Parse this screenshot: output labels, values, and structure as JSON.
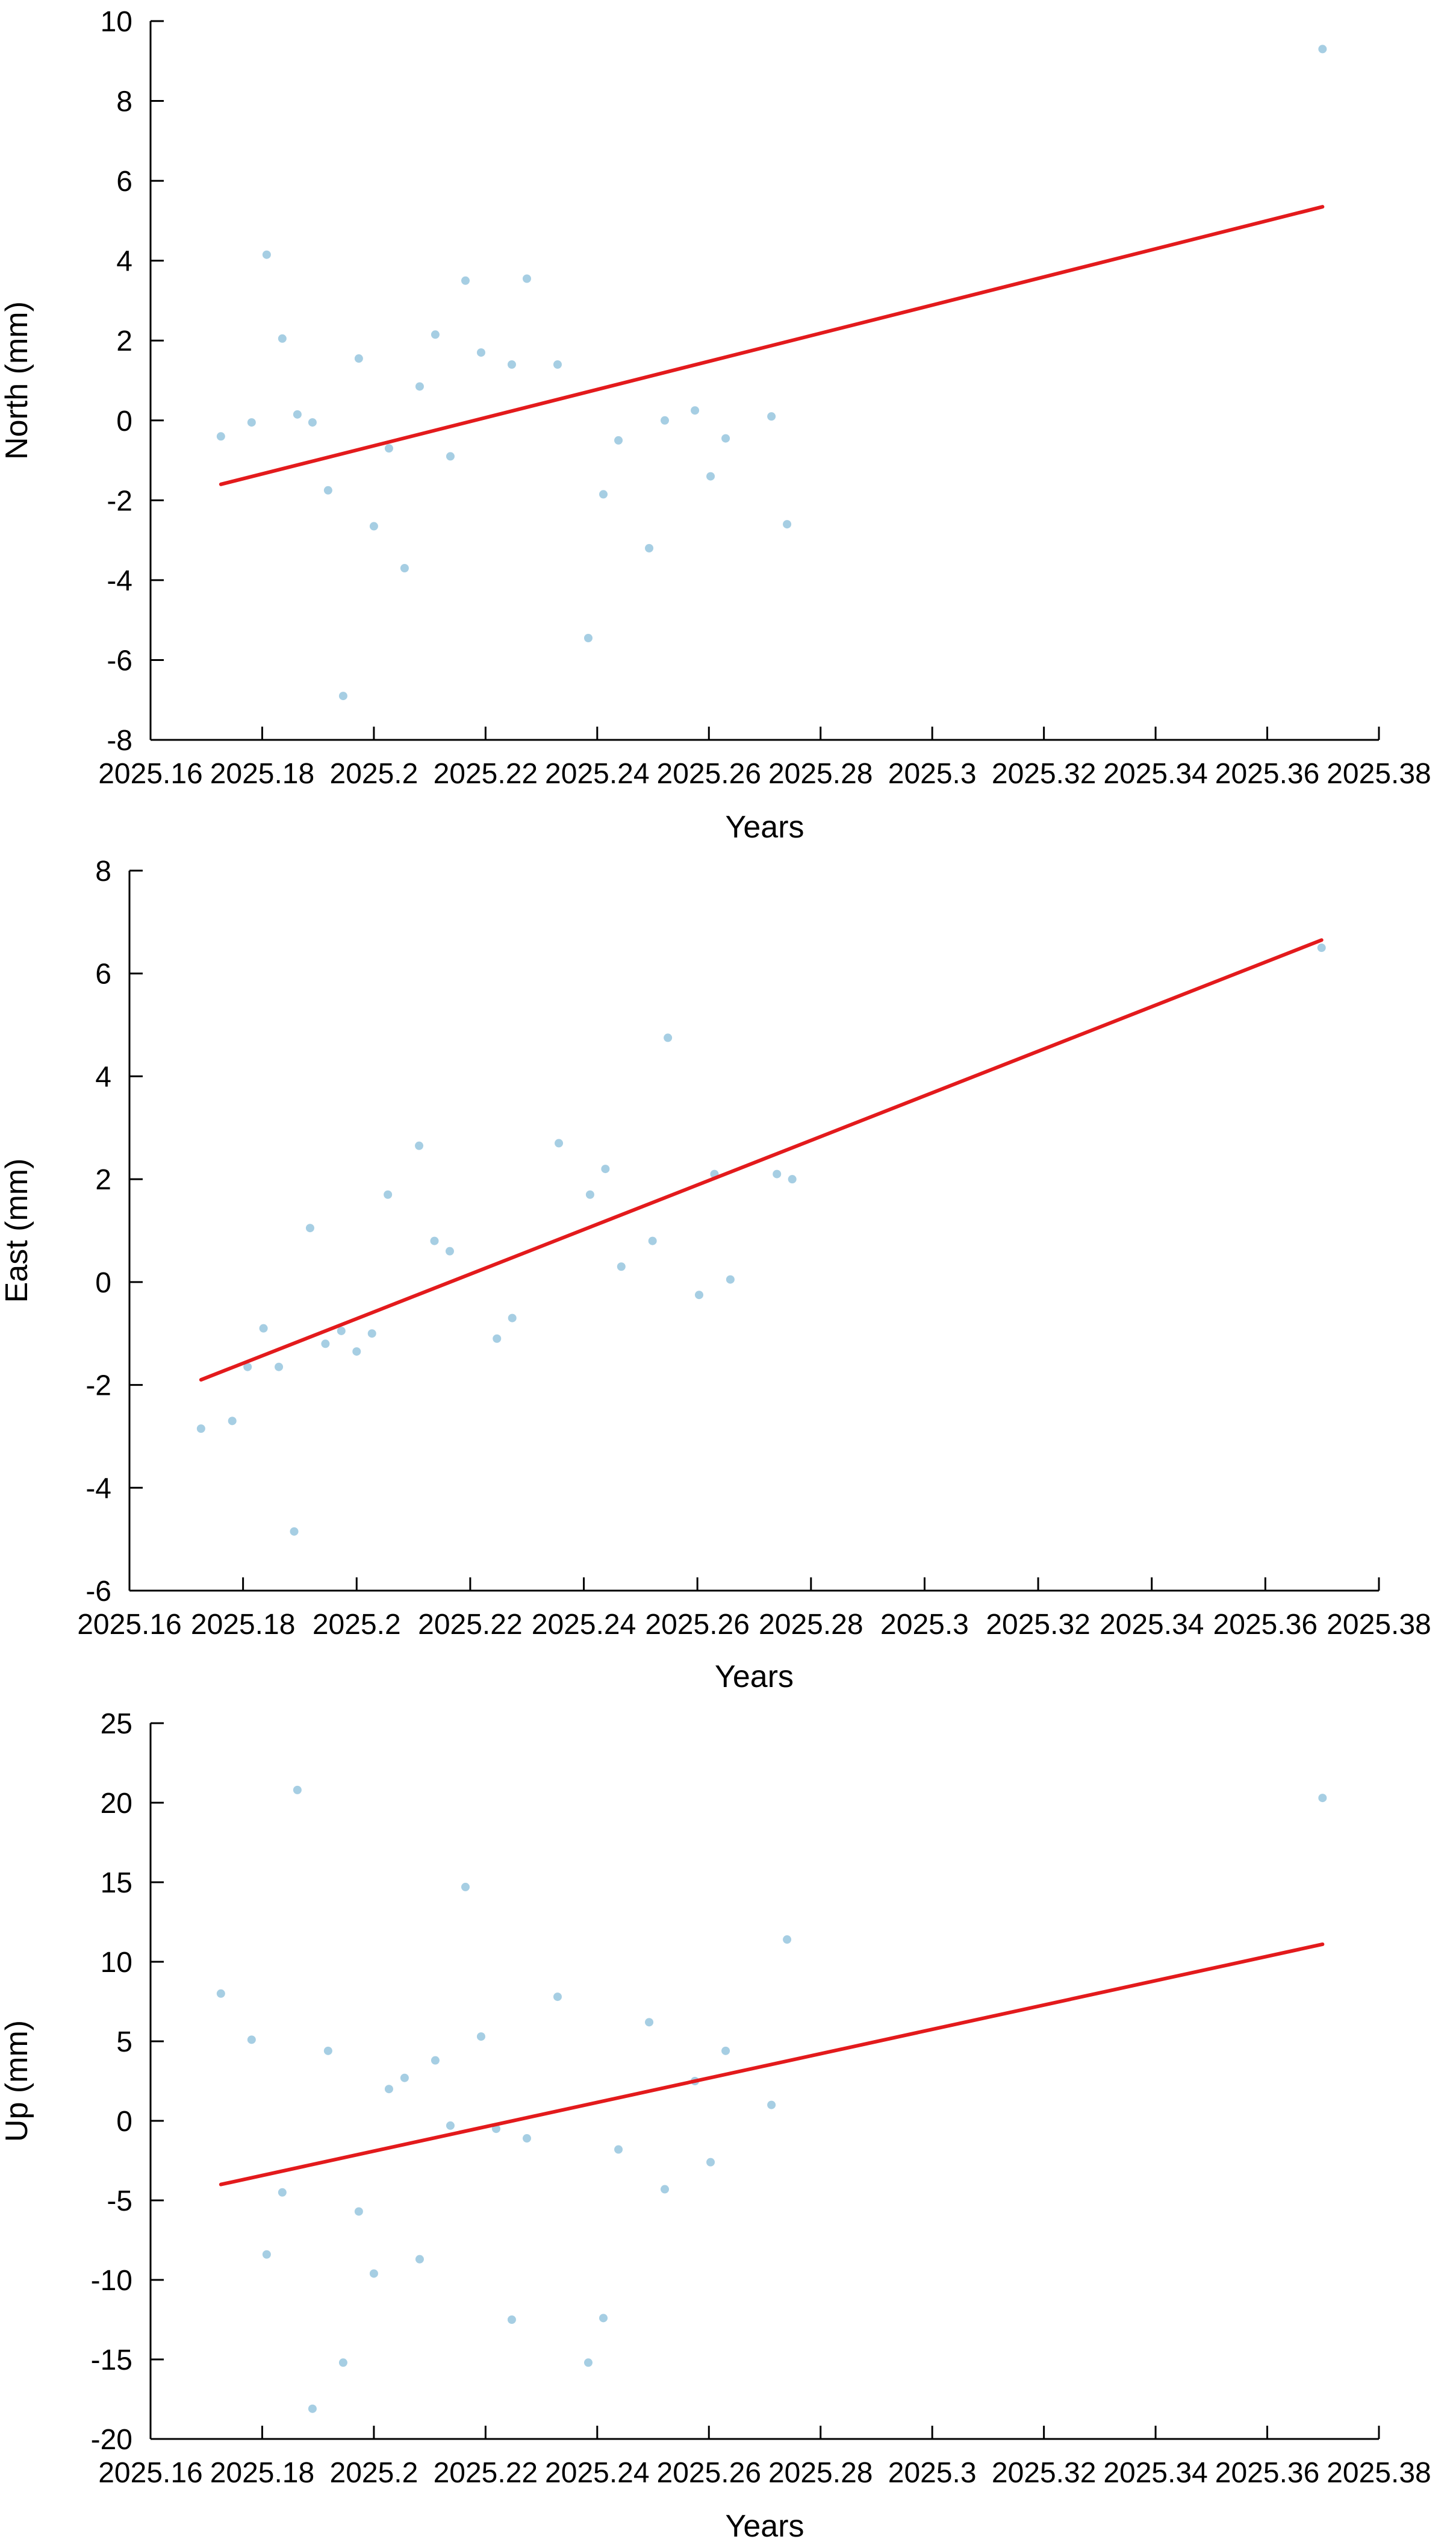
{
  "chart_data": [
    {
      "type": "scatter",
      "title": "",
      "xlabel": "Years",
      "ylabel": "North (mm)",
      "xlim": [
        2025.16,
        2025.38
      ],
      "ylim": [
        -8,
        10
      ],
      "xticks": [
        2025.16,
        2025.18,
        2025.2,
        2025.22,
        2025.24,
        2025.26,
        2025.28,
        2025.3,
        2025.32,
        2025.34,
        2025.36,
        2025.38
      ],
      "xtick_labels": [
        "2025.16",
        "2025.18",
        "2025.2",
        "2025.22",
        "2025.24",
        "2025.26",
        "2025.28",
        "2025.3",
        "2025.32",
        "2025.34",
        "2025.36",
        "2025.38"
      ],
      "yticks": [
        -8,
        -6,
        -4,
        -2,
        0,
        2,
        4,
        6,
        8,
        10
      ],
      "ytick_labels": [
        "-8",
        "-6",
        "-4",
        "-2",
        "0",
        "2",
        "4",
        "6",
        "8",
        "10"
      ],
      "grid": false,
      "point_color": "#a6cee3",
      "trend_color": "#e31a1c",
      "points": [
        [
          2025.1726,
          -0.4
        ],
        [
          2025.1781,
          -0.05
        ],
        [
          2025.1808,
          4.15
        ],
        [
          2025.1836,
          2.05
        ],
        [
          2025.1863,
          0.15
        ],
        [
          2025.189,
          -0.05
        ],
        [
          2025.1918,
          -1.75
        ],
        [
          2025.1945,
          -6.9
        ],
        [
          2025.1973,
          1.55
        ],
        [
          2025.2,
          -2.65
        ],
        [
          2025.2027,
          -0.7
        ],
        [
          2025.2055,
          -3.7
        ],
        [
          2025.2082,
          0.85
        ],
        [
          2025.211,
          2.15
        ],
        [
          2025.2137,
          -0.9
        ],
        [
          2025.2164,
          3.5
        ],
        [
          2025.2192,
          1.7
        ],
        [
          2025.2247,
          1.4
        ],
        [
          2025.2274,
          3.55
        ],
        [
          2025.2329,
          1.4
        ],
        [
          2025.2384,
          -5.45
        ],
        [
          2025.2411,
          -1.85
        ],
        [
          2025.2438,
          -0.5
        ],
        [
          2025.2493,
          -3.2
        ],
        [
          2025.2521,
          0.0
        ],
        [
          2025.2575,
          0.25
        ],
        [
          2025.2603,
          -1.4
        ],
        [
          2025.263,
          -0.45
        ],
        [
          2025.2712,
          0.1
        ],
        [
          2025.274,
          -2.6
        ],
        [
          2025.3699,
          9.3
        ]
      ],
      "trend_line": [
        [
          2025.1726,
          -1.6
        ],
        [
          2025.3699,
          5.35
        ]
      ]
    },
    {
      "type": "scatter",
      "title": "",
      "xlabel": "Years",
      "ylabel": "East (mm)",
      "xlim": [
        2025.16,
        2025.38
      ],
      "ylim": [
        -6,
        8
      ],
      "xticks": [
        2025.16,
        2025.18,
        2025.2,
        2025.22,
        2025.24,
        2025.26,
        2025.28,
        2025.3,
        2025.32,
        2025.34,
        2025.36,
        2025.38
      ],
      "xtick_labels": [
        "2025.16",
        "2025.18",
        "2025.2",
        "2025.22",
        "2025.24",
        "2025.26",
        "2025.28",
        "2025.3",
        "2025.32",
        "2025.34",
        "2025.36",
        "2025.38"
      ],
      "yticks": [
        -6,
        -4,
        -2,
        0,
        2,
        4,
        6,
        8
      ],
      "ytick_labels": [
        "-6",
        "-4",
        "-2",
        "0",
        "2",
        "4",
        "6",
        "8"
      ],
      "grid": false,
      "point_color": "#a6cee3",
      "trend_color": "#e31a1c",
      "points": [
        [
          2025.1726,
          -2.85
        ],
        [
          2025.1781,
          -2.7
        ],
        [
          2025.1808,
          -1.65
        ],
        [
          2025.1836,
          -0.9
        ],
        [
          2025.1863,
          -1.65
        ],
        [
          2025.189,
          -4.85
        ],
        [
          2025.1918,
          1.05
        ],
        [
          2025.1945,
          -1.2
        ],
        [
          2025.1973,
          -0.95
        ],
        [
          2025.2,
          -1.35
        ],
        [
          2025.2027,
          -1.0
        ],
        [
          2025.2055,
          1.7
        ],
        [
          2025.211,
          2.65
        ],
        [
          2025.2137,
          0.8
        ],
        [
          2025.2164,
          0.6
        ],
        [
          2025.2247,
          -1.1
        ],
        [
          2025.2274,
          -0.7
        ],
        [
          2025.2356,
          2.7
        ],
        [
          2025.2411,
          1.7
        ],
        [
          2025.2438,
          2.2
        ],
        [
          2025.2466,
          0.3
        ],
        [
          2025.2521,
          0.8
        ],
        [
          2025.2548,
          4.75
        ],
        [
          2025.2603,
          -0.25
        ],
        [
          2025.263,
          2.1
        ],
        [
          2025.2658,
          0.05
        ],
        [
          2025.274,
          2.1
        ],
        [
          2025.2767,
          2.0
        ],
        [
          2025.3699,
          6.5
        ]
      ],
      "trend_line": [
        [
          2025.1726,
          -1.9
        ],
        [
          2025.3699,
          6.65
        ]
      ]
    },
    {
      "type": "scatter",
      "title": "",
      "xlabel": "Years",
      "ylabel": "Up (mm)",
      "xlim": [
        2025.16,
        2025.38
      ],
      "ylim": [
        -20,
        25
      ],
      "xticks": [
        2025.16,
        2025.18,
        2025.2,
        2025.22,
        2025.24,
        2025.26,
        2025.28,
        2025.3,
        2025.32,
        2025.34,
        2025.36,
        2025.38
      ],
      "xtick_labels": [
        "2025.16",
        "2025.18",
        "2025.2",
        "2025.22",
        "2025.24",
        "2025.26",
        "2025.28",
        "2025.3",
        "2025.32",
        "2025.34",
        "2025.36",
        "2025.38"
      ],
      "yticks": [
        -20,
        -15,
        -10,
        -5,
        0,
        5,
        10,
        15,
        20,
        25
      ],
      "ytick_labels": [
        "-20",
        "-15",
        "-10",
        "-5",
        "0",
        "5",
        "10",
        "15",
        "20",
        "25"
      ],
      "grid": false,
      "point_color": "#a6cee3",
      "trend_color": "#e31a1c",
      "points": [
        [
          2025.1726,
          8.0
        ],
        [
          2025.1781,
          5.1
        ],
        [
          2025.1808,
          -8.4
        ],
        [
          2025.1836,
          -4.5
        ],
        [
          2025.1863,
          20.8
        ],
        [
          2025.189,
          -18.1
        ],
        [
          2025.1918,
          4.4
        ],
        [
          2025.1945,
          -15.2
        ],
        [
          2025.1973,
          -5.7
        ],
        [
          2025.2,
          -9.6
        ],
        [
          2025.2027,
          2.0
        ],
        [
          2025.2055,
          2.7
        ],
        [
          2025.2082,
          -8.7
        ],
        [
          2025.211,
          3.8
        ],
        [
          2025.2137,
          -0.3
        ],
        [
          2025.2164,
          14.7
        ],
        [
          2025.2192,
          5.3
        ],
        [
          2025.2219,
          -0.5
        ],
        [
          2025.2247,
          -12.5
        ],
        [
          2025.2274,
          -1.1
        ],
        [
          2025.2329,
          7.8
        ],
        [
          2025.2384,
          -15.2
        ],
        [
          2025.2411,
          -12.4
        ],
        [
          2025.2438,
          -1.8
        ],
        [
          2025.2493,
          6.2
        ],
        [
          2025.2521,
          -4.3
        ],
        [
          2025.2575,
          2.5
        ],
        [
          2025.2603,
          -2.6
        ],
        [
          2025.263,
          4.4
        ],
        [
          2025.2712,
          1.0
        ],
        [
          2025.274,
          11.4
        ],
        [
          2025.3699,
          20.3
        ]
      ],
      "trend_line": [
        [
          2025.1726,
          -4.0
        ],
        [
          2025.3699,
          11.1
        ]
      ]
    }
  ]
}
